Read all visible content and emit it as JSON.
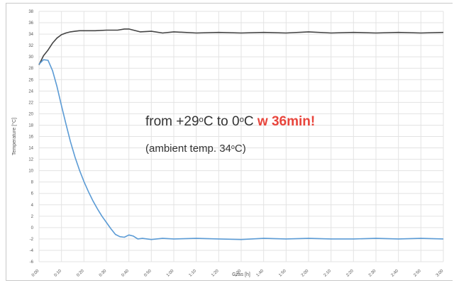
{
  "chart_data": {
    "type": "line",
    "title": "",
    "xlabel": "Czas [h]",
    "ylabel": "Temperature [°C]",
    "ylim": [
      -6,
      38
    ],
    "y_ticks": [
      -6,
      -4,
      -2,
      0,
      2,
      4,
      6,
      8,
      10,
      12,
      14,
      16,
      18,
      20,
      22,
      24,
      26,
      28,
      30,
      32,
      34,
      36,
      38
    ],
    "x_ticks": [
      "0:00",
      "0:10",
      "0:20",
      "0:30",
      "0:40",
      "0:50",
      "1:00",
      "1:10",
      "1:20",
      "1:30",
      "1:40",
      "1:50",
      "2:00",
      "2:10",
      "2:20",
      "2:30",
      "2:40",
      "2:50",
      "3:00"
    ],
    "x_hours": [
      0,
      3
    ],
    "grid": true,
    "series": [
      {
        "color": "#444444",
        "x": [
          "0:00",
          "0:02",
          "0:04",
          "0:06",
          "0:08",
          "0:10",
          "0:12",
          "0:14",
          "0:16",
          "0:18",
          "0:20",
          "0:25",
          "0:30",
          "0:35",
          "0:38",
          "0:40",
          "0:45",
          "0:50",
          "0:55",
          "1:00",
          "1:10",
          "1:20",
          "1:30",
          "1:40",
          "1:50",
          "2:00",
          "2:10",
          "2:20",
          "2:30",
          "2:40",
          "2:50",
          "3:00"
        ],
        "values": [
          28.6,
          30.2,
          31.2,
          32.4,
          33.3,
          33.9,
          34.2,
          34.4,
          34.5,
          34.6,
          34.6,
          34.6,
          34.7,
          34.7,
          34.9,
          34.9,
          34.4,
          34.5,
          34.2,
          34.4,
          34.2,
          34.3,
          34.2,
          34.3,
          34.2,
          34.4,
          34.2,
          34.3,
          34.2,
          34.3,
          34.2,
          34.3
        ]
      },
      {
        "color": "#5b9bd5",
        "x": [
          "0:00",
          "0:02",
          "0:04",
          "0:06",
          "0:08",
          "0:10",
          "0:12",
          "0:14",
          "0:16",
          "0:18",
          "0:20",
          "0:22",
          "0:24",
          "0:26",
          "0:28",
          "0:30",
          "0:32",
          "0:34",
          "0:36",
          "0:38",
          "0:40",
          "0:42",
          "0:44",
          "0:46",
          "0:50",
          "0:55",
          "1:00",
          "1:10",
          "1:20",
          "1:30",
          "1:40",
          "1:50",
          "2:00",
          "2:10",
          "2:20",
          "2:30",
          "2:40",
          "2:50",
          "3:00"
        ],
        "values": [
          28.7,
          29.5,
          29.4,
          27.6,
          24.8,
          21.4,
          18.2,
          15.1,
          12.4,
          10.1,
          8.1,
          6.3,
          4.7,
          3.3,
          2.0,
          0.9,
          -0.2,
          -1.2,
          -1.6,
          -1.7,
          -1.3,
          -1.5,
          -2.0,
          -1.9,
          -2.1,
          -1.9,
          -2.0,
          -1.9,
          -2.0,
          -2.1,
          -1.9,
          -2.0,
          -1.9,
          -2.0,
          -2.0,
          -1.9,
          -2.0,
          -1.9,
          -2.0
        ]
      }
    ]
  },
  "annotation": {
    "line1_prefix": "from +29",
    "line1_sup1": "o",
    "line1_mid": "C to 0",
    "line1_sup2": "o",
    "line1_after": "C ",
    "line1_highlight": "w 36min!",
    "line2_prefix": "(ambient temp. 34",
    "line2_sup": "o",
    "line2_suffix": "C)"
  }
}
